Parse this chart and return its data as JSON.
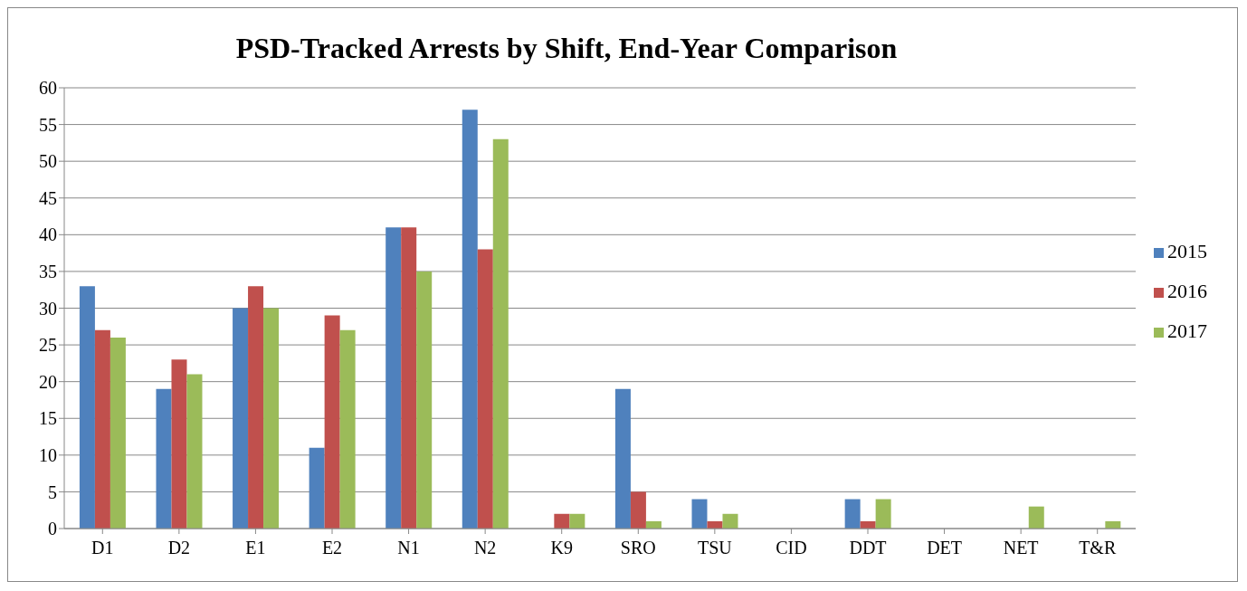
{
  "chart_data": {
    "type": "bar",
    "title": "PSD-Tracked Arrests by Shift, End-Year Comparison",
    "categories": [
      "D1",
      "D2",
      "E1",
      "E2",
      "N1",
      "N2",
      "K9",
      "SRO",
      "TSU",
      "CID",
      "DDT",
      "DET",
      "NET",
      "T&R"
    ],
    "series": [
      {
        "name": "2015",
        "color": "#4f81bd",
        "values": [
          33,
          19,
          30,
          11,
          41,
          57,
          0,
          19,
          4,
          0,
          4,
          0,
          0,
          0
        ]
      },
      {
        "name": "2016",
        "color": "#c0504d",
        "values": [
          27,
          23,
          33,
          29,
          41,
          38,
          2,
          5,
          1,
          0,
          1,
          0,
          0,
          0
        ]
      },
      {
        "name": "2017",
        "color": "#9bbb59",
        "values": [
          26,
          21,
          30,
          27,
          35,
          53,
          2,
          1,
          2,
          0,
          4,
          0,
          3,
          1
        ]
      }
    ],
    "ylim": [
      0,
      60
    ],
    "yticks": [
      0,
      5,
      10,
      15,
      20,
      25,
      30,
      35,
      40,
      45,
      50,
      55,
      60
    ],
    "grid": "y",
    "legend": "right"
  }
}
